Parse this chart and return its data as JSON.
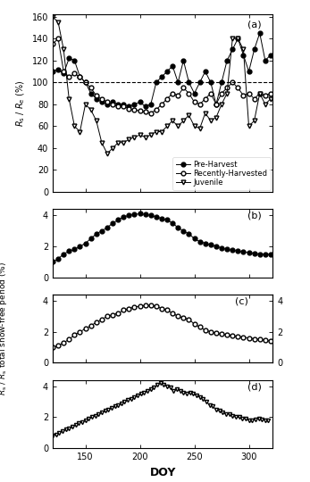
{
  "panel_a_label": "(a)",
  "panel_b_label": "(b)",
  "panel_c_label": "(c)",
  "panel_d_label": "(d)",
  "xlabel": "DOY",
  "ylabel_a": "$R_{\\mathrm{s}}$ / $R_{\\mathrm{e}}$ (%)",
  "ylabel_bcd": "$R_{\\mathrm{s}}$ / $R_{\\mathrm{s}}$ total snow-free period (%)",
  "doy_a": [
    120,
    125,
    130,
    135,
    140,
    145,
    150,
    155,
    160,
    165,
    170,
    175,
    180,
    185,
    190,
    195,
    200,
    205,
    210,
    215,
    220,
    225,
    230,
    235,
    240,
    245,
    250,
    255,
    260,
    265,
    270,
    275,
    280,
    285,
    290,
    295,
    300,
    305,
    310,
    315,
    320
  ],
  "pre_harvest": [
    110,
    112,
    108,
    122,
    120,
    105,
    100,
    90,
    85,
    82,
    80,
    82,
    80,
    80,
    78,
    80,
    82,
    78,
    80,
    100,
    105,
    110,
    115,
    100,
    120,
    100,
    90,
    100,
    110,
    100,
    80,
    100,
    120,
    130,
    140,
    125,
    110,
    130,
    145,
    120,
    125
  ],
  "recently_harvested": [
    135,
    140,
    110,
    105,
    108,
    105,
    100,
    95,
    88,
    85,
    82,
    80,
    78,
    78,
    76,
    75,
    74,
    73,
    72,
    75,
    80,
    85,
    90,
    88,
    95,
    90,
    82,
    80,
    85,
    90,
    80,
    90,
    95,
    100,
    95,
    88,
    90,
    85,
    90,
    88,
    90
  ],
  "juvenile": [
    160,
    155,
    130,
    85,
    60,
    55,
    80,
    75,
    65,
    45,
    35,
    40,
    45,
    45,
    48,
    50,
    52,
    50,
    52,
    55,
    55,
    60,
    65,
    60,
    65,
    70,
    60,
    58,
    72,
    65,
    68,
    80,
    90,
    140,
    140,
    130,
    60,
    65,
    90,
    80,
    85
  ],
  "doy_b": [
    120,
    125,
    130,
    135,
    140,
    145,
    150,
    155,
    160,
    165,
    170,
    175,
    180,
    185,
    190,
    195,
    200,
    205,
    210,
    215,
    220,
    225,
    230,
    235,
    240,
    245,
    250,
    255,
    260,
    265,
    270,
    275,
    280,
    285,
    290,
    295,
    300,
    305,
    310,
    315,
    320
  ],
  "b_vals": [
    1.0,
    1.2,
    1.5,
    1.7,
    1.8,
    2.0,
    2.2,
    2.5,
    2.8,
    3.0,
    3.2,
    3.5,
    3.7,
    3.9,
    4.0,
    4.05,
    4.1,
    4.05,
    4.0,
    3.9,
    3.8,
    3.7,
    3.5,
    3.2,
    3.0,
    2.8,
    2.5,
    2.3,
    2.2,
    2.1,
    2.0,
    1.9,
    1.8,
    1.75,
    1.7,
    1.65,
    1.6,
    1.55,
    1.5,
    1.5,
    1.5
  ],
  "doy_c": [
    120,
    125,
    130,
    135,
    140,
    145,
    150,
    155,
    160,
    165,
    170,
    175,
    180,
    185,
    190,
    195,
    200,
    205,
    210,
    215,
    220,
    225,
    230,
    235,
    240,
    245,
    250,
    255,
    260,
    265,
    270,
    275,
    280,
    285,
    290,
    295,
    300,
    305,
    310,
    315,
    320
  ],
  "c_vals": [
    1.0,
    1.1,
    1.3,
    1.5,
    1.8,
    2.0,
    2.2,
    2.4,
    2.6,
    2.8,
    3.0,
    3.1,
    3.2,
    3.4,
    3.5,
    3.6,
    3.65,
    3.7,
    3.7,
    3.65,
    3.5,
    3.4,
    3.2,
    3.0,
    2.9,
    2.8,
    2.5,
    2.3,
    2.1,
    2.0,
    1.9,
    1.85,
    1.8,
    1.75,
    1.7,
    1.65,
    1.6,
    1.55,
    1.5,
    1.45,
    1.4
  ],
  "doy_d": [
    120,
    123,
    126,
    129,
    132,
    135,
    138,
    141,
    144,
    147,
    150,
    153,
    156,
    159,
    162,
    165,
    168,
    171,
    174,
    177,
    180,
    183,
    186,
    189,
    192,
    195,
    198,
    201,
    204,
    207,
    210,
    213,
    216,
    219,
    222,
    225,
    228,
    231,
    234,
    237,
    240,
    243,
    246,
    249,
    252,
    255,
    258,
    261,
    264,
    267,
    270,
    273,
    276,
    279,
    282,
    285,
    288,
    291,
    294,
    297,
    300,
    303,
    306,
    309,
    312,
    315,
    318
  ],
  "d_vals": [
    0.8,
    0.9,
    1.0,
    1.1,
    1.2,
    1.3,
    1.4,
    1.5,
    1.6,
    1.7,
    1.8,
    1.9,
    2.0,
    2.1,
    2.2,
    2.3,
    2.4,
    2.5,
    2.6,
    2.7,
    2.8,
    2.9,
    3.0,
    3.1,
    3.2,
    3.3,
    3.4,
    3.5,
    3.6,
    3.7,
    3.8,
    3.9,
    4.1,
    4.2,
    4.1,
    4.0,
    3.9,
    3.7,
    3.8,
    3.7,
    3.6,
    3.5,
    3.6,
    3.5,
    3.4,
    3.3,
    3.2,
    3.0,
    2.8,
    2.7,
    2.5,
    2.4,
    2.3,
    2.2,
    2.2,
    2.1,
    2.0,
    2.0,
    1.9,
    1.9,
    1.8,
    1.8,
    1.85,
    1.9,
    1.85,
    1.8,
    1.8
  ],
  "xlim": [
    120,
    322
  ],
  "ylim_a": [
    0,
    162
  ],
  "ylim_bcd": [
    0,
    4.4
  ],
  "legend_pre": "Pre-Harvest",
  "legend_rh": "Recently-Harvested",
  "legend_juv": "Juvenile",
  "xticks": [
    150,
    200,
    250,
    300
  ],
  "yticks_a": [
    0,
    20,
    40,
    60,
    80,
    100,
    120,
    140,
    160
  ],
  "yticks_bcd": [
    0,
    2,
    4
  ],
  "yticks_c_right": [
    0,
    2,
    4
  ],
  "dashed_line_y": 100
}
